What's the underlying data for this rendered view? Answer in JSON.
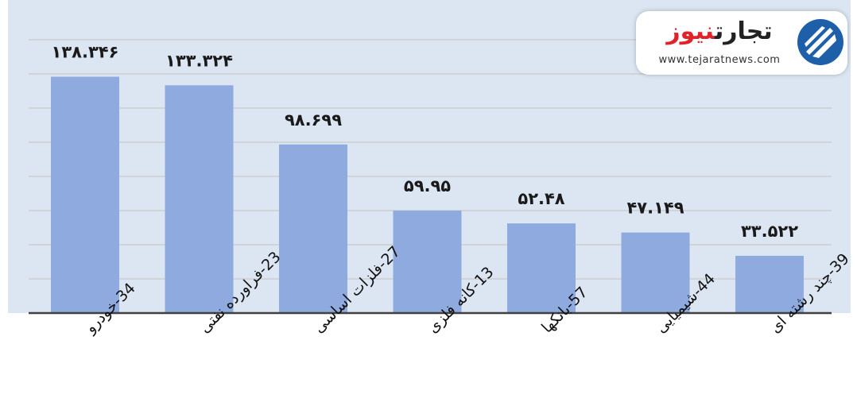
{
  "chart_data": {
    "type": "bar",
    "categories": [
      "34-خودرو",
      "23-فراورده نفتی",
      "27-فلزات اساسی",
      "13-کانه فلزی",
      "57-بانکها",
      "44-شیمیایی",
      "39-چند رشته ای"
    ],
    "values": [
      138.346,
      133.324,
      98.699,
      59.95,
      52.48,
      47.149,
      33.522
    ],
    "data_labels": [
      "۱۳۸.۳۴۶",
      "۱۳۳.۳۲۴",
      "۹۸.۶۹۹",
      "۵۹.۹۵",
      "۵۲.۴۸",
      "۴۷.۱۴۹",
      "۳۳.۵۲۲"
    ],
    "title": "",
    "xlabel": "",
    "ylabel": "",
    "ylim": [
      0,
      160
    ],
    "grid": true,
    "colors": {
      "bar": "#8eaadf",
      "plot_bg": "#dce6f2",
      "grid": "#c9c9c9",
      "axis": "#404040"
    }
  },
  "logo": {
    "brand_main": "تجارت",
    "brand_accent": "نیوز",
    "url": "www.tejaratnews.com",
    "icon": "tejaratnews-logo-icon",
    "colors": {
      "brand_blue": "#1d5fa8",
      "accent_red": "#e0232a"
    }
  }
}
